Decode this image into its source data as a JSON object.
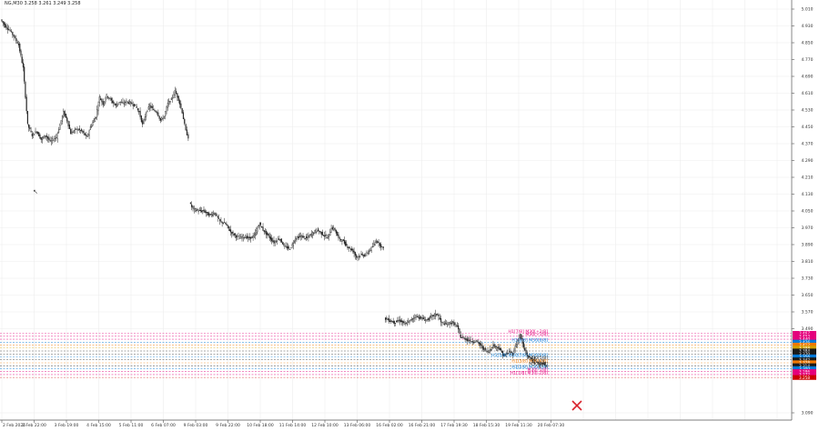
{
  "symbol_header": "NG,M30  3.258 3.261 3.249 3.258",
  "chart_data": {
    "type": "candlestick",
    "symbol": "NG",
    "timeframe": "M30",
    "ohlc_last": {
      "open": 3.258,
      "high": 3.261,
      "low": 3.249,
      "close": 3.258
    },
    "ylim": [
      3.05,
      5.05
    ],
    "y_ticks": [
      "5.010",
      "4.930",
      "4.850",
      "4.770",
      "4.690",
      "4.610",
      "4.530",
      "4.450",
      "4.370",
      "4.290",
      "4.210",
      "4.130",
      "4.050",
      "3.970",
      "3.890",
      "3.810",
      "3.730",
      "3.650",
      "3.570",
      "3.490",
      "3.090"
    ],
    "x_ticks": [
      "2 Feb 2026",
      "2 Feb 22:00",
      "3 Feb 19:00",
      "4 Feb 15:00",
      "5 Feb 11:00",
      "6 Feb 07:00",
      "9 Feb 03:00",
      "9 Feb 22:00",
      "10 Feb 18:00",
      "11 Feb 14:00",
      "12 Feb 10:00",
      "13 Feb 06:00",
      "16 Feb 02:00",
      "16 Feb 21:00",
      "17 Feb 19:30",
      "18 Feb 15:30",
      "19 Feb 11:30",
      "20 Feb 07:30"
    ],
    "price_path": [
      {
        "t": 0,
        "p": 4.96
      },
      {
        "t": 5,
        "p": 4.93
      },
      {
        "t": 12,
        "p": 4.9
      },
      {
        "t": 20,
        "p": 4.84
      },
      {
        "t": 25,
        "p": 4.73
      },
      {
        "t": 30,
        "p": 4.46
      },
      {
        "t": 35,
        "p": 4.41
      },
      {
        "t": 40,
        "p": 4.43
      },
      {
        "t": 45,
        "p": 4.39
      },
      {
        "t": 50,
        "p": 4.41
      },
      {
        "t": 55,
        "p": 4.38
      },
      {
        "t": 62,
        "p": 4.4
      },
      {
        "t": 66,
        "p": 4.46
      },
      {
        "t": 70,
        "p": 4.52
      },
      {
        "t": 74,
        "p": 4.48
      },
      {
        "t": 78,
        "p": 4.42
      },
      {
        "t": 84,
        "p": 4.44
      },
      {
        "t": 90,
        "p": 4.43
      },
      {
        "t": 96,
        "p": 4.4
      },
      {
        "t": 100,
        "p": 4.45
      },
      {
        "t": 106,
        "p": 4.5
      },
      {
        "t": 110,
        "p": 4.59
      },
      {
        "t": 114,
        "p": 4.56
      },
      {
        "t": 118,
        "p": 4.6
      },
      {
        "t": 122,
        "p": 4.58
      },
      {
        "t": 128,
        "p": 4.55
      },
      {
        "t": 132,
        "p": 4.57
      },
      {
        "t": 136,
        "p": 4.56
      },
      {
        "t": 140,
        "p": 4.57
      },
      {
        "t": 146,
        "p": 4.56
      },
      {
        "t": 150,
        "p": 4.55
      },
      {
        "t": 154,
        "p": 4.52
      },
      {
        "t": 158,
        "p": 4.46
      },
      {
        "t": 162,
        "p": 4.52
      },
      {
        "t": 166,
        "p": 4.55
      },
      {
        "t": 170,
        "p": 4.53
      },
      {
        "t": 174,
        "p": 4.52
      },
      {
        "t": 178,
        "p": 4.48
      },
      {
        "t": 182,
        "p": 4.5
      },
      {
        "t": 186,
        "p": 4.56
      },
      {
        "t": 190,
        "p": 4.58
      },
      {
        "t": 194,
        "p": 4.62
      },
      {
        "t": 198,
        "p": 4.58
      },
      {
        "t": 202,
        "p": 4.52
      },
      {
        "t": 206,
        "p": 4.43
      },
      {
        "t": 209,
        "p": 4.4
      },
      {
        "t": 210,
        "p": 4.09,
        "gap": true
      },
      {
        "t": 214,
        "p": 4.06
      },
      {
        "t": 220,
        "p": 4.05
      },
      {
        "t": 226,
        "p": 4.05
      },
      {
        "t": 232,
        "p": 4.03
      },
      {
        "t": 238,
        "p": 4.04
      },
      {
        "t": 244,
        "p": 4.0
      },
      {
        "t": 250,
        "p": 3.99
      },
      {
        "t": 256,
        "p": 3.95
      },
      {
        "t": 262,
        "p": 3.93
      },
      {
        "t": 266,
        "p": 3.92
      },
      {
        "t": 270,
        "p": 3.93
      },
      {
        "t": 276,
        "p": 3.92
      },
      {
        "t": 282,
        "p": 3.93
      },
      {
        "t": 288,
        "p": 3.99
      },
      {
        "t": 292,
        "p": 3.96
      },
      {
        "t": 298,
        "p": 3.93
      },
      {
        "t": 304,
        "p": 3.9
      },
      {
        "t": 310,
        "p": 3.92
      },
      {
        "t": 316,
        "p": 3.88
      },
      {
        "t": 322,
        "p": 3.87
      },
      {
        "t": 328,
        "p": 3.92
      },
      {
        "t": 334,
        "p": 3.93
      },
      {
        "t": 340,
        "p": 3.92
      },
      {
        "t": 346,
        "p": 3.94
      },
      {
        "t": 352,
        "p": 3.96
      },
      {
        "t": 358,
        "p": 3.94
      },
      {
        "t": 364,
        "p": 3.92
      },
      {
        "t": 368,
        "p": 3.97
      },
      {
        "t": 372,
        "p": 3.96
      },
      {
        "t": 376,
        "p": 3.92
      },
      {
        "t": 380,
        "p": 3.91
      },
      {
        "t": 386,
        "p": 3.88
      },
      {
        "t": 392,
        "p": 3.86
      },
      {
        "t": 396,
        "p": 3.83
      },
      {
        "t": 400,
        "p": 3.84
      },
      {
        "t": 406,
        "p": 3.84
      },
      {
        "t": 410,
        "p": 3.86
      },
      {
        "t": 414,
        "p": 3.88
      },
      {
        "t": 418,
        "p": 3.91
      },
      {
        "t": 422,
        "p": 3.89
      },
      {
        "t": 426,
        "p": 3.87
      },
      {
        "t": 427,
        "p": 3.54,
        "gap": true
      },
      {
        "t": 432,
        "p": 3.53
      },
      {
        "t": 438,
        "p": 3.52
      },
      {
        "t": 444,
        "p": 3.53
      },
      {
        "t": 450,
        "p": 3.51
      },
      {
        "t": 456,
        "p": 3.53
      },
      {
        "t": 462,
        "p": 3.55
      },
      {
        "t": 468,
        "p": 3.54
      },
      {
        "t": 474,
        "p": 3.53
      },
      {
        "t": 480,
        "p": 3.55
      },
      {
        "t": 486,
        "p": 3.56
      },
      {
        "t": 490,
        "p": 3.52
      },
      {
        "t": 496,
        "p": 3.51
      },
      {
        "t": 502,
        "p": 3.52
      },
      {
        "t": 508,
        "p": 3.5
      },
      {
        "t": 512,
        "p": 3.45
      },
      {
        "t": 518,
        "p": 3.44
      },
      {
        "t": 524,
        "p": 3.43
      },
      {
        "t": 530,
        "p": 3.43
      },
      {
        "t": 536,
        "p": 3.4
      },
      {
        "t": 542,
        "p": 3.38
      },
      {
        "t": 548,
        "p": 3.41
      },
      {
        "t": 554,
        "p": 3.4
      },
      {
        "t": 560,
        "p": 3.36
      },
      {
        "t": 566,
        "p": 3.38
      },
      {
        "t": 570,
        "p": 3.37
      },
      {
        "t": 574,
        "p": 3.42
      },
      {
        "t": 578,
        "p": 3.46
      },
      {
        "t": 582,
        "p": 3.4
      },
      {
        "t": 586,
        "p": 3.36
      },
      {
        "t": 592,
        "p": 3.34
      },
      {
        "t": 598,
        "p": 3.33
      },
      {
        "t": 604,
        "p": 3.32
      },
      {
        "t": 608,
        "p": 3.31
      }
    ],
    "levels": [
      {
        "label": "H1[7/8] M30[+2/8]",
        "price": 3.468,
        "color": "#e4007c",
        "tag": "3.467"
      },
      {
        "label": "M30[+1/8]",
        "price": 3.454,
        "color": "#e4007c",
        "tag": "3.453"
      },
      {
        "label": "",
        "price": 3.44,
        "color": "#e4007c",
        "tag": "3.440"
      },
      {
        "label": "H1[6/8] M30[8/8]",
        "price": 3.426,
        "color": "#0078d7",
        "tag": "3.426"
      },
      {
        "label": "",
        "price": 3.412,
        "color": "#f07800",
        "tag": "3.412"
      },
      {
        "label": "",
        "price": 3.398,
        "color": "#d4a000",
        "tag": "3.398"
      },
      {
        "label": "",
        "price": 3.384,
        "color": "#1a1a1a",
        "tag": "3.384"
      },
      {
        "label": "",
        "price": 3.37,
        "color": "#1a1a1a",
        "tag": "3.370"
      },
      {
        "label": "H1[5/8] M30[7/8] M30[6/8]",
        "price": 3.356,
        "color": "#0078d7",
        "tag": "3.356"
      },
      {
        "label": "M30[5/8]",
        "price": 3.342,
        "color": "#1a1a1a",
        "tag": "3.342"
      },
      {
        "label": "H1[3/8] M30[4/8]",
        "price": 3.328,
        "color": "#f07800",
        "tag": "3.328"
      },
      {
        "label": "M30[3/8]",
        "price": 3.314,
        "color": "#1a1a1a",
        "tag": "3.314"
      },
      {
        "label": "H1[2/8] M30[1/8]",
        "price": 3.3,
        "color": "#0078d7",
        "tag": "3.300"
      },
      {
        "label": "M30[-1/8]",
        "price": 3.286,
        "color": "#e4007c",
        "tag": "3.286"
      },
      {
        "label": "H1[1/8] M30[-2/8]",
        "price": 3.272,
        "color": "#e4007c",
        "tag": "3.272"
      },
      {
        "label": "",
        "price": 3.258,
        "color": "#cc0000",
        "tag": "3.258"
      }
    ],
    "marker_color": "#d8202a",
    "grid": true
  }
}
